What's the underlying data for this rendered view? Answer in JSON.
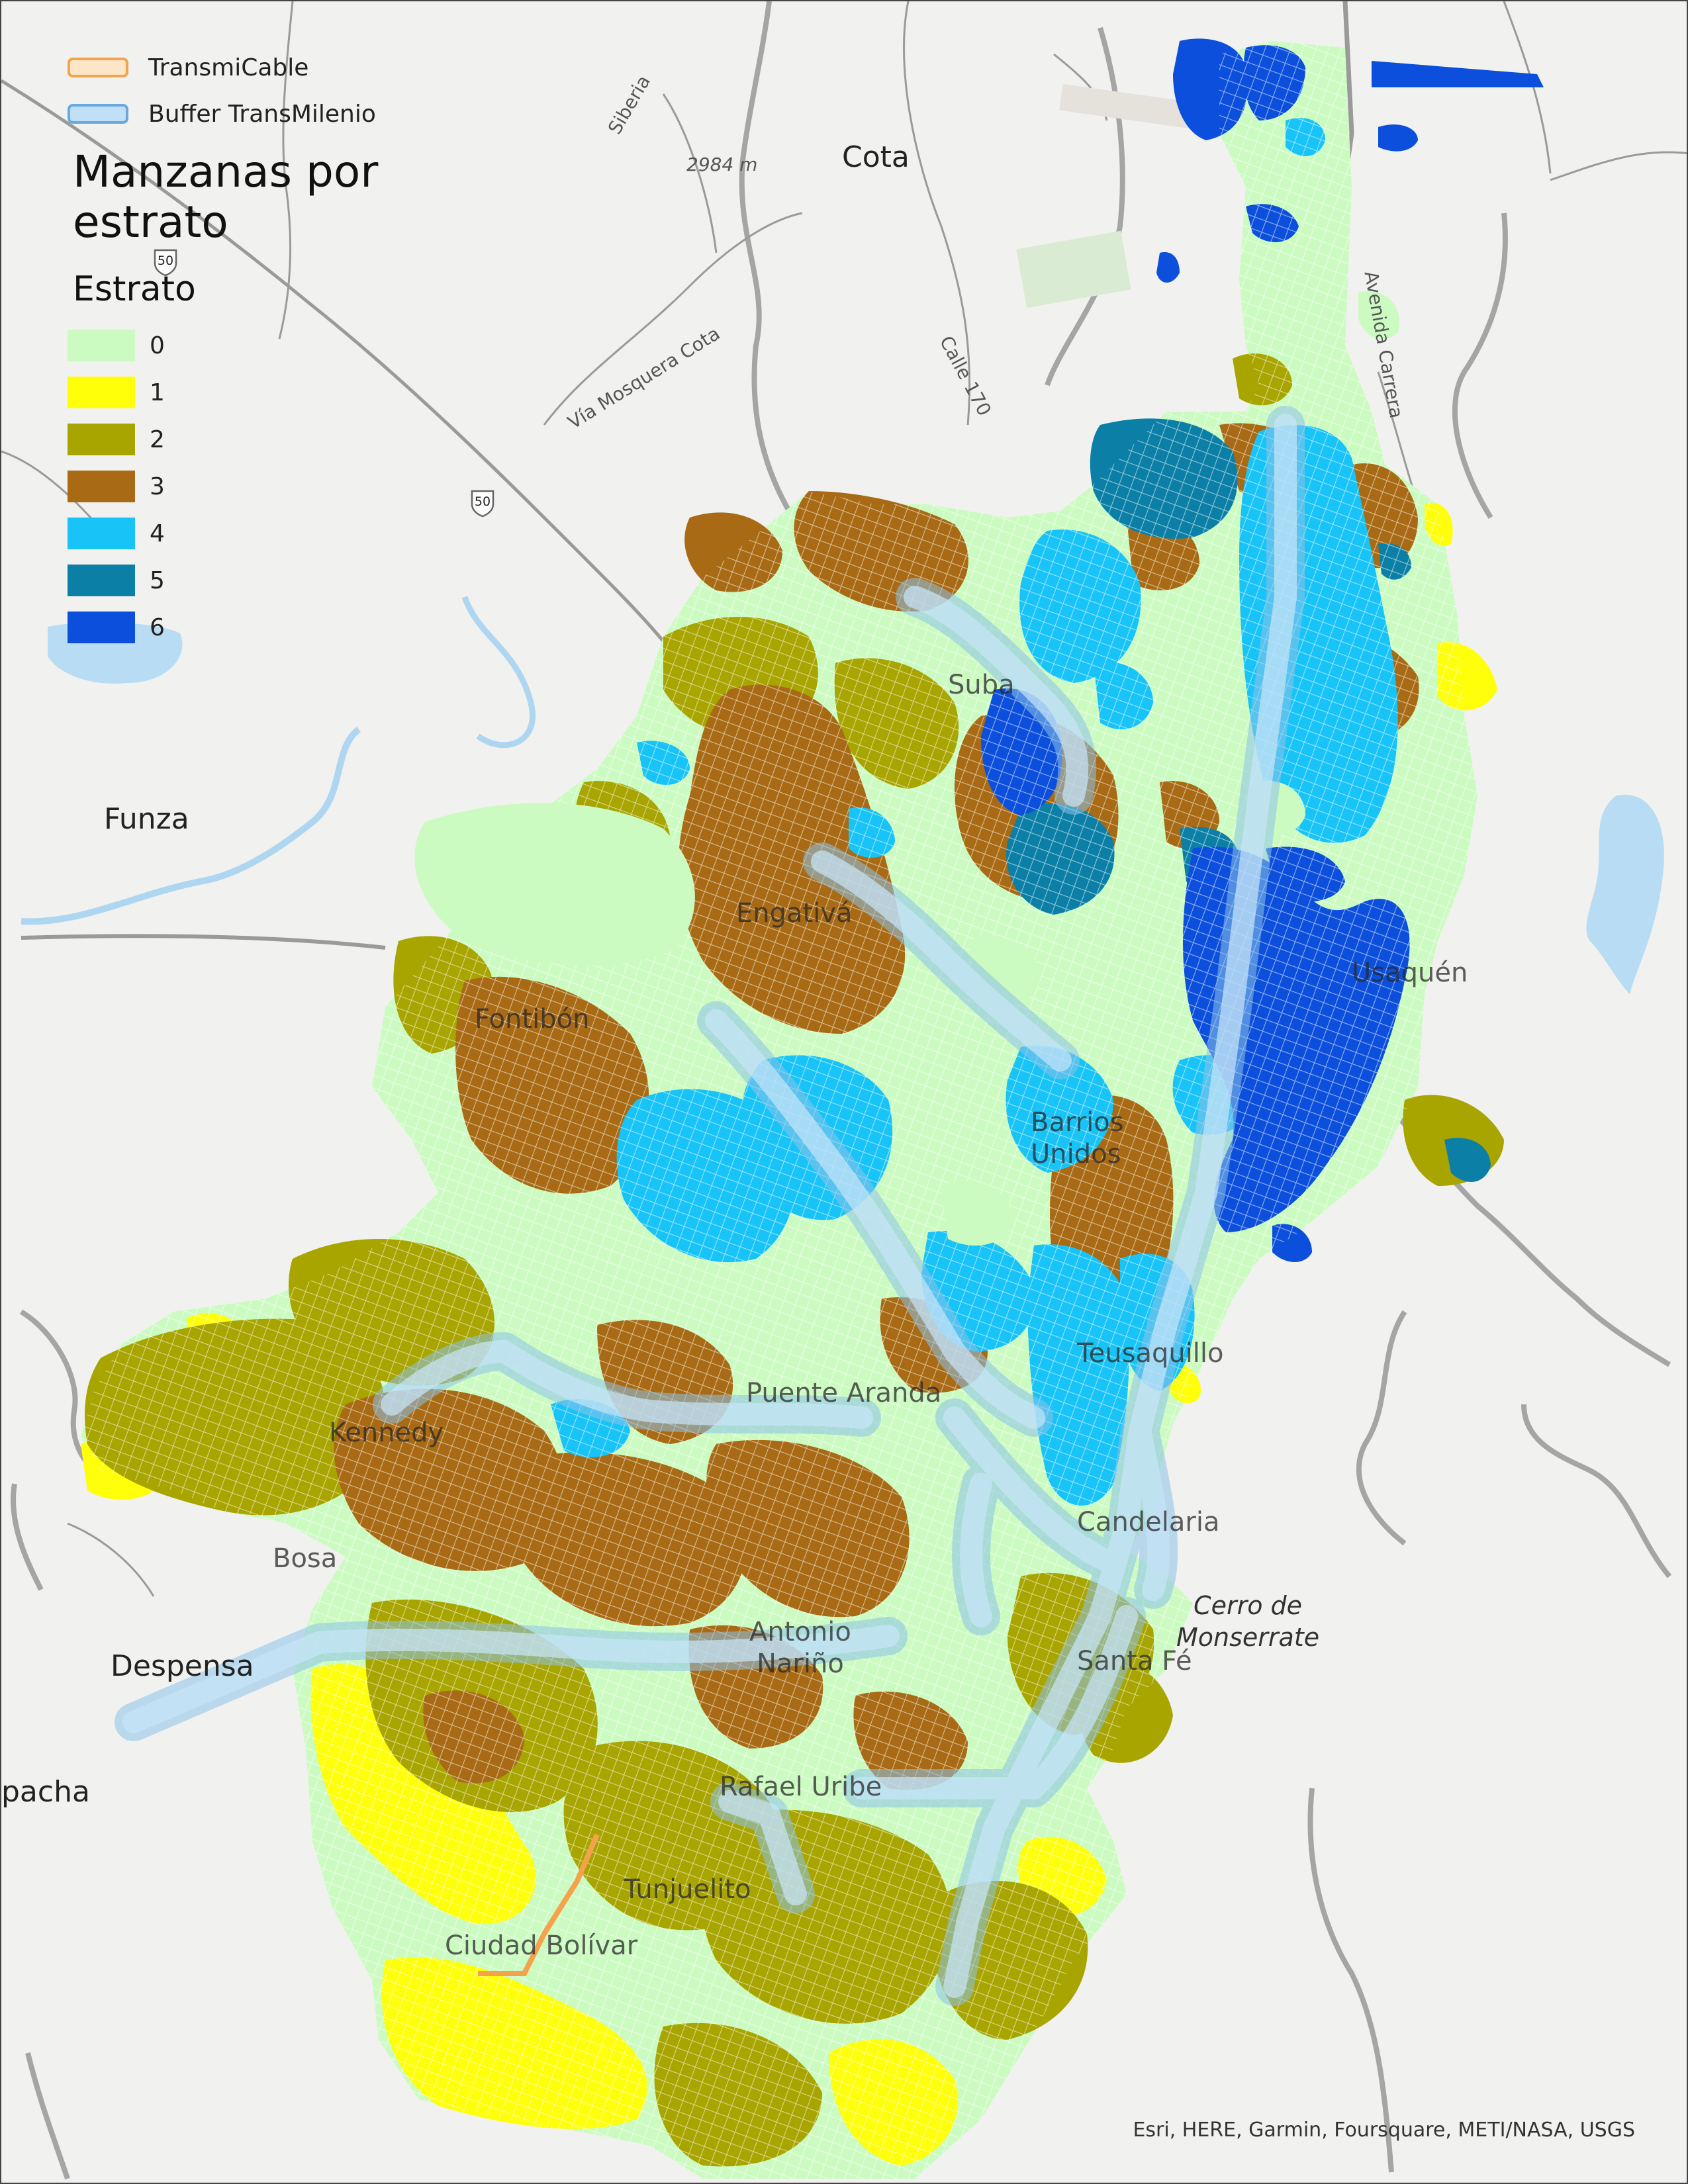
{
  "legend": {
    "lines": [
      {
        "label": "TransmiCable",
        "fill": "#fde6c8",
        "stroke": "#f4a24c"
      },
      {
        "label": "Buffer TransMilenio",
        "fill": "#bfe0f7",
        "stroke": "#6aa9dc"
      }
    ],
    "title": "Manzanas por estrato",
    "subtitle": "Estrato",
    "strata": [
      {
        "label": "0",
        "color": "#ccfbc2"
      },
      {
        "label": "1",
        "color": "#ffff0a"
      },
      {
        "label": "2",
        "color": "#a8a400"
      },
      {
        "label": "3",
        "color": "#a86a14"
      },
      {
        "label": "4",
        "color": "#17c3f7"
      },
      {
        "label": "5",
        "color": "#0b7fa6"
      },
      {
        "label": "6",
        "color": "#0b4fdc"
      }
    ]
  },
  "places": {
    "cota": "Cota",
    "funza": "Funza",
    "despensa": "Despensa",
    "soacha": "pacha",
    "cerro": "Cerro de\nMonserrate",
    "elevation": "2984 m",
    "siberia": "Siberia",
    "via_mosquera": "Vía Mosquera Cota",
    "calle170": "Calle 170",
    "avenida_carrera": "Avenida Carrera",
    "route50a": "50",
    "route50b": "50"
  },
  "overlay_labels": {
    "suba": "Suba",
    "engativa": "Engativá",
    "fontibon": "Fontibón",
    "usaquen": "Usaquén",
    "barrios_unidos": "Barrios\nUnidos",
    "teusaquillo": "Teusaquillo",
    "puente_aranda": "Puente Aranda",
    "kennedy": "Kennedy",
    "bosa": "Bosa",
    "antonio_narino": "Antonio\nNariño",
    "rafael_uribe": "Rafael Uribe",
    "tunjuelito": "Tunjuelito",
    "ciudad_bolivar": "Ciudad Bolívar",
    "santa_fe": "Santa Fé",
    "candelaria": "Candelaria"
  },
  "attribution": "Esri, HERE, Garmin, Foursquare, METI/NASA, USGS"
}
